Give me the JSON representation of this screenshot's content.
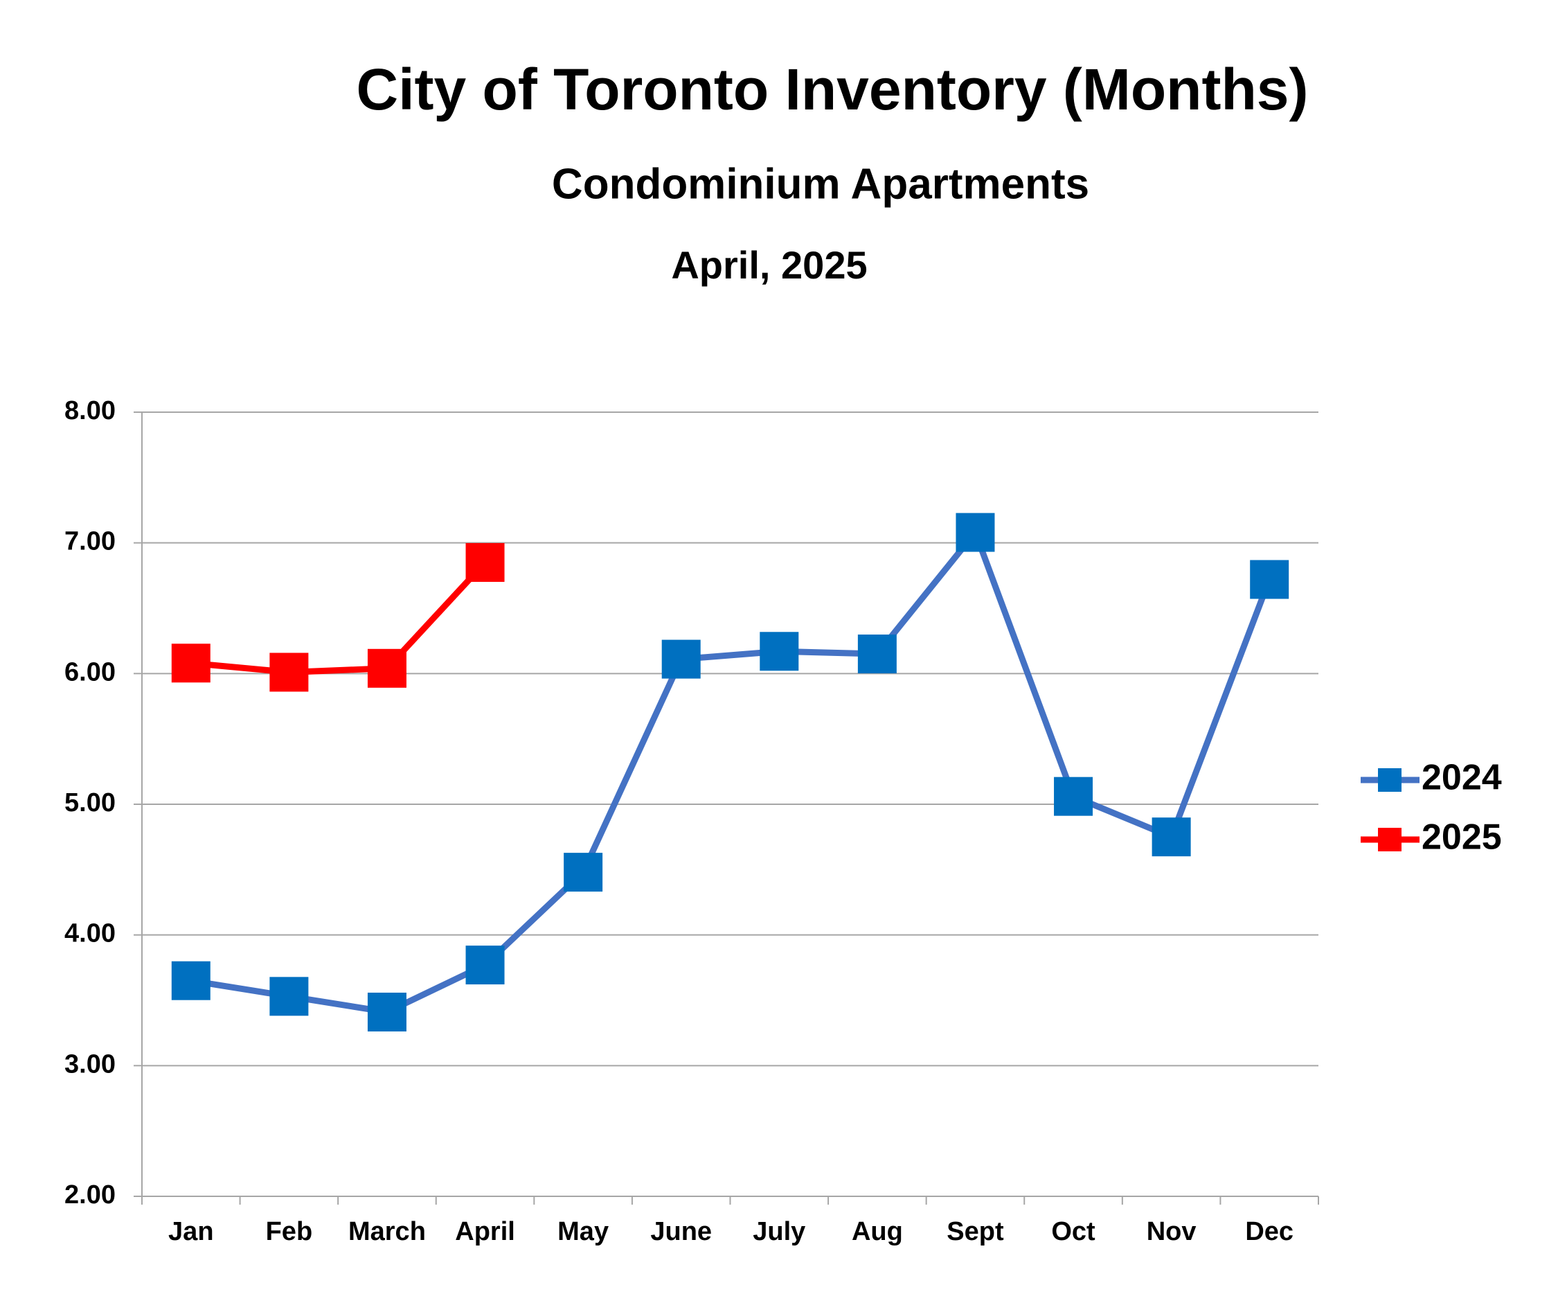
{
  "chart_data": {
    "type": "line",
    "title": "City of Toronto Inventory (Months)",
    "subtitle": "Condominium Apartments",
    "date": "April, 2025",
    "categories": [
      "Jan",
      "Feb",
      "March",
      "April",
      "May",
      "June",
      "July",
      "Aug",
      "Sept",
      "Oct",
      "Nov",
      "Dec"
    ],
    "series": [
      {
        "name": "2024",
        "color": "#4472c4",
        "marker_color": "#0070c0",
        "values": [
          3.65,
          3.53,
          3.41,
          3.77,
          4.48,
          6.11,
          6.17,
          6.15,
          7.08,
          5.06,
          4.75,
          6.72
        ]
      },
      {
        "name": "2025",
        "color": "#ff0000",
        "marker_color": "#ff0000",
        "values": [
          6.08,
          6.01,
          6.04,
          6.85,
          null,
          null,
          null,
          null,
          null,
          null,
          null,
          null
        ]
      }
    ],
    "ylim": [
      2,
      8
    ],
    "yticks": [
      {
        "value": 2,
        "label": "2.00"
      },
      {
        "value": 3,
        "label": "3.00"
      },
      {
        "value": 4,
        "label": "4.00"
      },
      {
        "value": 5,
        "label": "5.00"
      },
      {
        "value": 6,
        "label": "6.00"
      },
      {
        "value": 7,
        "label": "7.00"
      },
      {
        "value": 8,
        "label": "8.00"
      }
    ],
    "grid": true,
    "legend": "right"
  }
}
